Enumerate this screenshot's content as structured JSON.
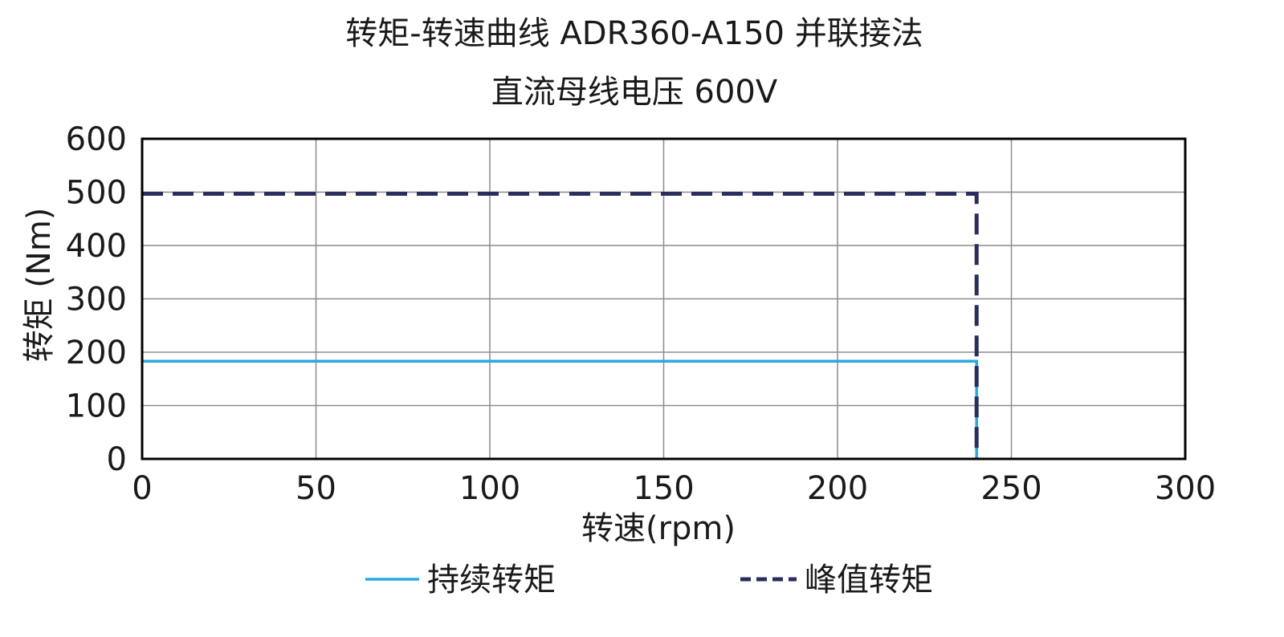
{
  "chart_data": {
    "type": "line",
    "title": "转矩-转速曲线 ADR360-A150 并联接法",
    "subtitle": "直流母线电压 600V",
    "xlabel": "转速(rpm)",
    "ylabel": "转矩 (Nm)",
    "xlim": [
      0,
      300
    ],
    "ylim": [
      0,
      600
    ],
    "xticks": [
      0,
      50,
      100,
      150,
      200,
      250,
      300
    ],
    "yticks": [
      0,
      100,
      200,
      300,
      400,
      500,
      600
    ],
    "grid": true,
    "legend_position": "bottom",
    "series": [
      {
        "name": "持续转矩",
        "style": "solid",
        "color": "#29a8e0",
        "x": [
          0,
          240,
          240
        ],
        "y": [
          183,
          183,
          0
        ]
      },
      {
        "name": "峰值转矩",
        "style": "dashed",
        "color": "#2b2d5e",
        "x": [
          0,
          240,
          240
        ],
        "y": [
          497,
          497,
          0
        ]
      }
    ]
  }
}
